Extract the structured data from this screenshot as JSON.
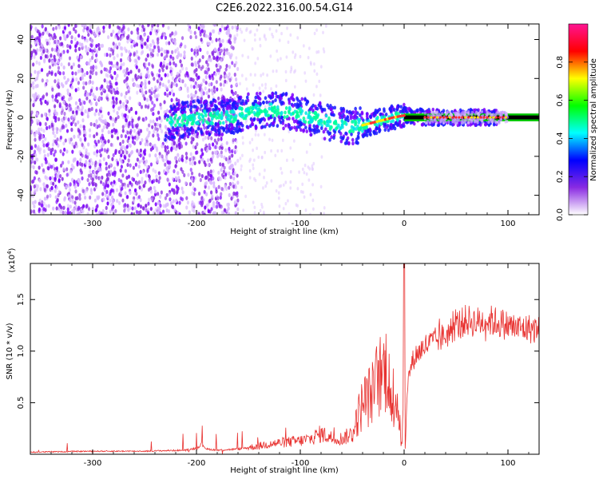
{
  "figure_title": "C2E6.2022.316.00.54.G14",
  "chart_data": [
    {
      "type": "heatmap",
      "xlabel": "Height of straight line (km)",
      "ylabel": "Frequency (Hz)",
      "xlim": [
        -360,
        130
      ],
      "ylim": [
        -50,
        48
      ],
      "xticks": [
        -300,
        -200,
        -100,
        0,
        100
      ],
      "xtick_labels": [
        "-300",
        "-200",
        "-100",
        "0",
        "100"
      ],
      "yticks": [
        -40,
        -20,
        0,
        20,
        40
      ],
      "ytick_labels": [
        "-40",
        "-20",
        "0",
        "20",
        "40"
      ],
      "ridge": {
        "x": [
          -230,
          -200,
          -170,
          -150,
          -130,
          -110,
          -90,
          -70,
          -55,
          -40,
          -25,
          -10,
          0,
          20,
          60,
          100,
          130
        ],
        "y": [
          -3,
          0,
          0,
          3,
          4,
          3,
          0,
          -3,
          -5,
          -4,
          -2,
          0,
          1,
          0,
          0,
          0,
          0
        ]
      },
      "colorbar": {
        "label": "Normalized spectral amplitude",
        "range": [
          0,
          1
        ],
        "ticks": [
          0.0,
          0.2,
          0.4,
          0.6,
          0.8
        ],
        "tick_labels": [
          "0.0",
          "0.2",
          "0.4",
          "0.6",
          "0.8"
        ],
        "colors": [
          "#ffffff",
          "#8a2be2",
          "#0000ff",
          "#00ffff",
          "#00ff00",
          "#ffff00",
          "#ff0000",
          "#ff1493"
        ]
      },
      "grid": false
    },
    {
      "type": "line",
      "xlabel": "Height of straight line (km)",
      "ylabel": "SNR (10 * v/v)",
      "scale_label": "(x10",
      "scale_exp": "4",
      "scale_close": ")",
      "xlim": [
        -360,
        130
      ],
      "ylim": [
        0,
        1.85
      ],
      "xticks": [
        -300,
        -200,
        -100,
        0,
        100
      ],
      "xtick_labels": [
        "-300",
        "-200",
        "-100",
        "0",
        "100"
      ],
      "yticks": [
        0.5,
        1.0,
        1.5
      ],
      "ytick_labels": [
        "0.5",
        "1.0",
        "1.5"
      ],
      "series": [
        {
          "color": "#e8312f",
          "x": [
            -360,
            -300,
            -250,
            -210,
            -200,
            -195,
            -190,
            -180,
            -160,
            -140,
            -130,
            -120,
            -110,
            -100,
            -90,
            -80,
            -70,
            -60,
            -50,
            -45,
            -40,
            -35,
            -30,
            -25,
            -20,
            -15,
            -12,
            -8,
            -5,
            -3,
            -1,
            0,
            1,
            3,
            5,
            10,
            15,
            20,
            30,
            40,
            50,
            60,
            70,
            80,
            90,
            100,
            110,
            120,
            130
          ],
          "y": [
            0.02,
            0.03,
            0.03,
            0.04,
            0.06,
            0.1,
            0.05,
            0.04,
            0.05,
            0.08,
            0.1,
            0.11,
            0.12,
            0.13,
            0.15,
            0.2,
            0.16,
            0.15,
            0.2,
            0.35,
            0.5,
            0.55,
            0.6,
            0.75,
            0.8,
            0.9,
            0.35,
            0.6,
            0.4,
            0.1,
            0.3,
            1.9,
            0.05,
            0.6,
            0.8,
            0.95,
            1.0,
            1.05,
            1.1,
            1.15,
            1.25,
            1.3,
            1.28,
            1.3,
            1.28,
            1.25,
            1.22,
            1.22,
            1.2
          ]
        }
      ],
      "grid": false
    }
  ]
}
